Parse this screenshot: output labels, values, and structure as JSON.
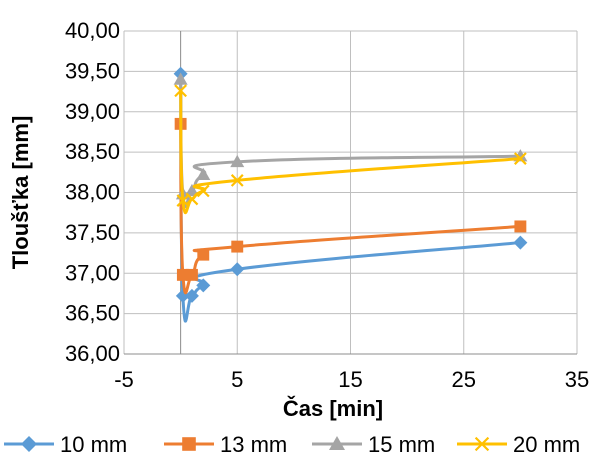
{
  "chart_data": {
    "type": "scatter",
    "title": "",
    "xlabel": "Čas [min]",
    "ylabel": "Tloušťka [mm]",
    "xlim": [
      -5,
      35
    ],
    "ylim": [
      36,
      40
    ],
    "x_ticks": [
      "-5",
      "5",
      "15",
      "25",
      "35"
    ],
    "y_ticks": [
      "36,00",
      "36,50",
      "37,00",
      "37,50",
      "38,00",
      "38,50",
      "39,00",
      "39,50",
      "40,00"
    ],
    "grid": true,
    "legend_position": "bottom",
    "series": [
      {
        "name": "10 mm",
        "color": "#5B9BD5",
        "marker": "diamond",
        "points": [
          [
            0,
            39.47
          ],
          [
            0.2,
            36.72
          ],
          [
            1,
            36.72
          ],
          [
            2,
            36.85
          ],
          [
            5,
            37.05
          ],
          [
            30,
            37.38
          ]
        ]
      },
      {
        "name": "13 mm",
        "color": "#ED7D31",
        "marker": "square",
        "points": [
          [
            0,
            38.85
          ],
          [
            0.2,
            36.98
          ],
          [
            1,
            36.98
          ],
          [
            2,
            37.23
          ],
          [
            5,
            37.33
          ],
          [
            30,
            37.58
          ]
        ]
      },
      {
        "name": "15 mm",
        "color": "#A5A5A5",
        "marker": "triangle",
        "points": [
          [
            0,
            39.4
          ],
          [
            0.2,
            37.98
          ],
          [
            1,
            38.02
          ],
          [
            2,
            38.22
          ],
          [
            5,
            38.38
          ],
          [
            30,
            38.45
          ]
        ]
      },
      {
        "name": "20 mm",
        "color": "#FFC000",
        "marker": "x",
        "points": [
          [
            0,
            39.26
          ],
          [
            0.2,
            37.9
          ],
          [
            1,
            37.92
          ],
          [
            2,
            38.02
          ],
          [
            5,
            38.15
          ],
          [
            30,
            38.42
          ]
        ]
      }
    ]
  }
}
